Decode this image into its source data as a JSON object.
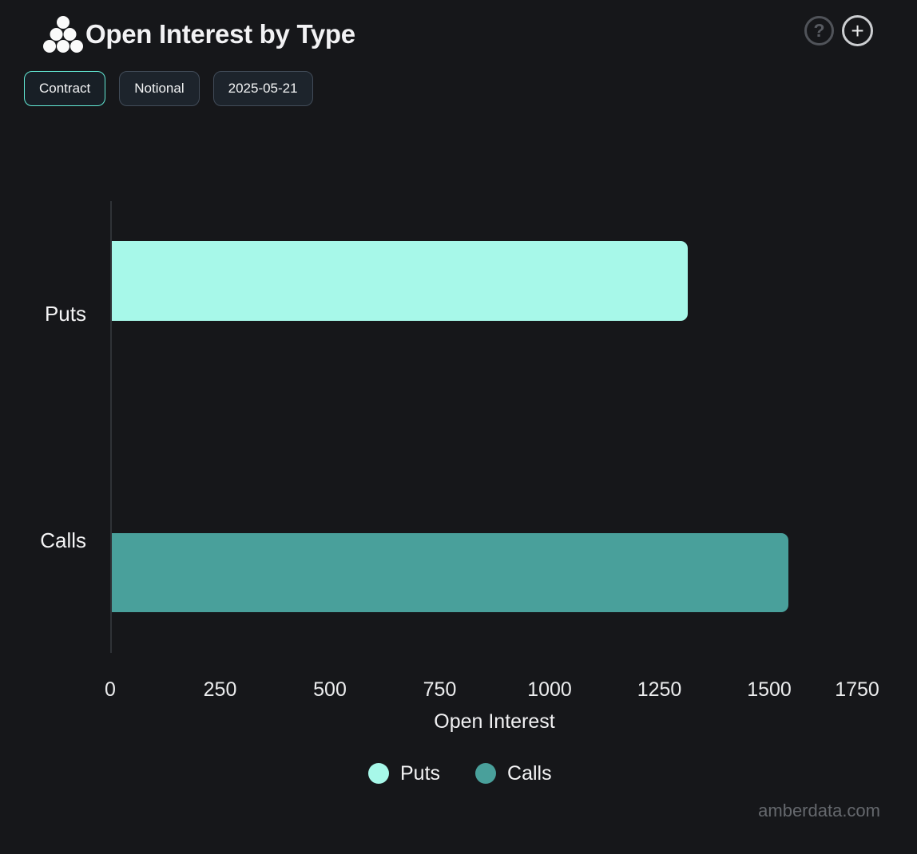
{
  "header": {
    "title": "Open Interest by Type",
    "help_label": "?",
    "add_label": "+"
  },
  "toolbar": {
    "buttons": [
      {
        "label": "Contract",
        "active": true
      },
      {
        "label": "Notional",
        "active": false
      },
      {
        "label": "2025-05-21",
        "active": false
      }
    ]
  },
  "chart_data": {
    "type": "bar",
    "orientation": "horizontal",
    "title": "Open Interest by Type",
    "categories": [
      "Puts",
      "Calls"
    ],
    "values": [
      1310,
      1540
    ],
    "bar_colors": [
      "#a7f8e9",
      "#49a09b"
    ],
    "xlabel": "Open Interest",
    "xticks": [
      "0",
      "250",
      "500",
      "750",
      "1000",
      "1250",
      "1500",
      "1750"
    ],
    "xtick_values": [
      0,
      250,
      500,
      750,
      1000,
      1250,
      1500,
      1750
    ],
    "xlim": [
      0,
      1750
    ],
    "grid": false,
    "legend_position": "bottom",
    "legend": [
      {
        "label": "Puts",
        "color": "#a7f8e9"
      },
      {
        "label": "Calls",
        "color": "#49a09b"
      }
    ]
  },
  "watermark": "amberdata.com",
  "colors": {
    "background": "#16171a",
    "accent": "#62e9d4",
    "puts": "#a7f8e9",
    "calls": "#49a09b"
  }
}
